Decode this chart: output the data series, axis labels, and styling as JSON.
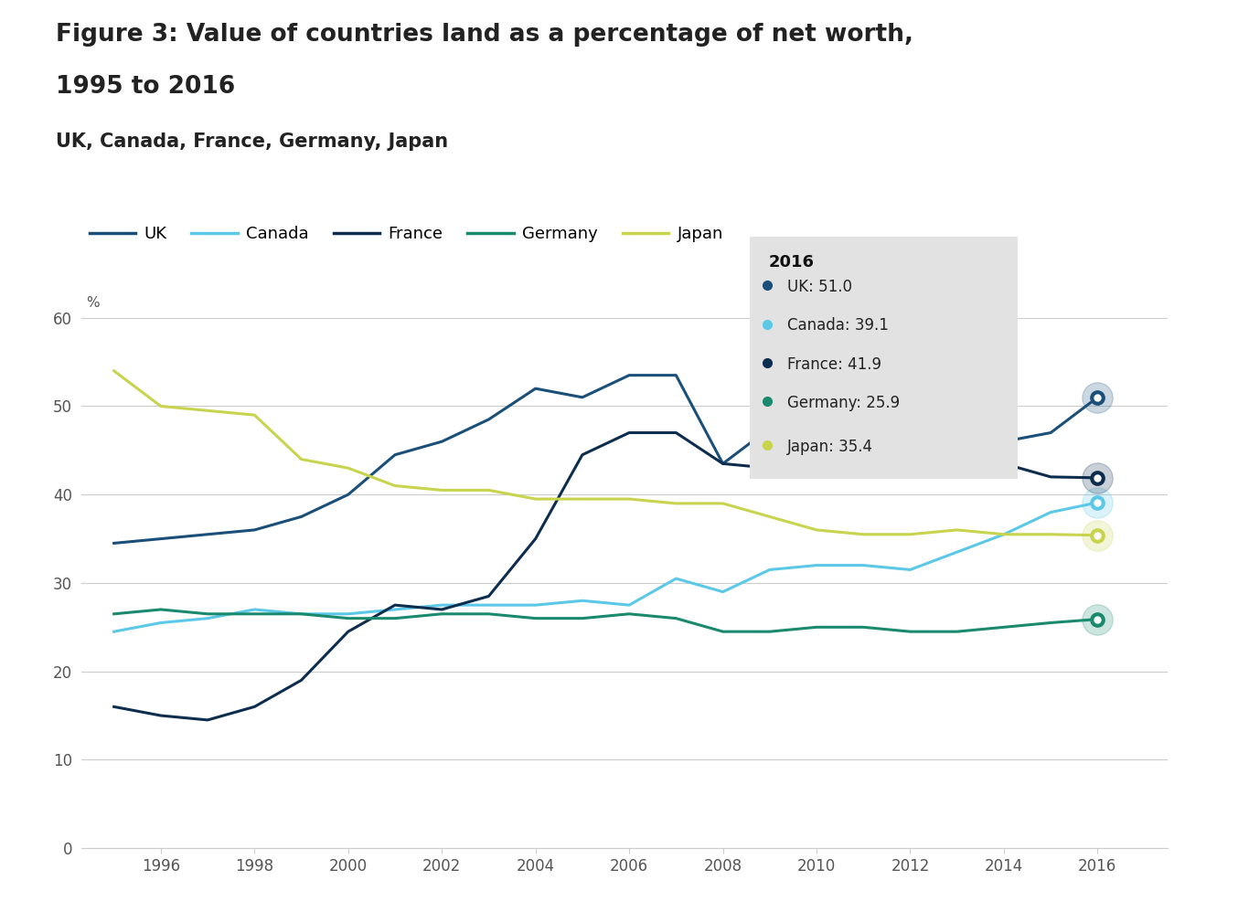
{
  "title_line1": "Figure 3: Value of countries land as a percentage of net worth,",
  "title_line2": "1995 to 2016",
  "subtitle": "UK, Canada, France, Germany, Japan",
  "years": [
    1995,
    1996,
    1997,
    1998,
    1999,
    2000,
    2001,
    2002,
    2003,
    2004,
    2005,
    2006,
    2007,
    2008,
    2009,
    2010,
    2011,
    2012,
    2013,
    2014,
    2015,
    2016
  ],
  "UK": [
    34.5,
    35.0,
    35.5,
    36.0,
    37.5,
    40.0,
    44.5,
    46.0,
    48.5,
    52.0,
    51.0,
    53.5,
    53.5,
    43.5,
    47.5,
    48.0,
    47.5,
    46.5,
    46.5,
    46.0,
    47.0,
    51.0
  ],
  "Canada": [
    24.5,
    25.5,
    26.0,
    27.0,
    26.5,
    26.5,
    27.0,
    27.5,
    27.5,
    27.5,
    28.0,
    27.5,
    30.5,
    29.0,
    31.5,
    32.0,
    32.0,
    31.5,
    33.5,
    35.5,
    38.0,
    39.1
  ],
  "France": [
    16.0,
    15.0,
    14.5,
    16.0,
    19.0,
    24.5,
    27.5,
    27.0,
    28.5,
    35.0,
    44.5,
    47.0,
    47.0,
    43.5,
    43.0,
    43.0,
    44.5,
    43.5,
    43.0,
    43.5,
    42.0,
    41.9
  ],
  "Germany": [
    26.5,
    27.0,
    26.5,
    26.5,
    26.5,
    26.0,
    26.0,
    26.5,
    26.5,
    26.0,
    26.0,
    26.5,
    26.0,
    24.5,
    24.5,
    25.0,
    25.0,
    24.5,
    24.5,
    25.0,
    25.5,
    25.9
  ],
  "Japan": [
    54.0,
    50.0,
    49.5,
    49.0,
    44.0,
    43.0,
    41.0,
    40.5,
    40.5,
    39.5,
    39.5,
    39.5,
    39.0,
    39.0,
    37.5,
    36.0,
    35.5,
    35.5,
    36.0,
    35.5,
    35.5,
    35.4
  ],
  "colors": {
    "UK": "#1a4f7a",
    "Canada": "#5bc8e8",
    "France": "#0d2d4e",
    "Germany": "#1a8a6e",
    "Japan": "#c8d44e"
  },
  "ylim": [
    0,
    65
  ],
  "yticks": [
    0,
    10,
    20,
    30,
    40,
    50,
    60
  ],
  "xticks": [
    1996,
    1998,
    2000,
    2002,
    2004,
    2006,
    2008,
    2010,
    2012,
    2014,
    2016
  ],
  "grid_color": "#cccccc",
  "background_color": "#ffffff",
  "tick_color": "#555555",
  "annotation_2016": {
    "title": "2016",
    "entries": [
      {
        "country": "UK",
        "value": "51.0",
        "color": "#1a4f7a"
      },
      {
        "country": "Canada",
        "value": "39.1",
        "color": "#5bc8e8"
      },
      {
        "country": "France",
        "value": "41.9",
        "color": "#0d2d4e"
      },
      {
        "country": "Germany",
        "value": "25.9",
        "color": "#1a8a6e"
      },
      {
        "country": "Japan",
        "value": "35.4",
        "color": "#c8d44e"
      }
    ]
  }
}
